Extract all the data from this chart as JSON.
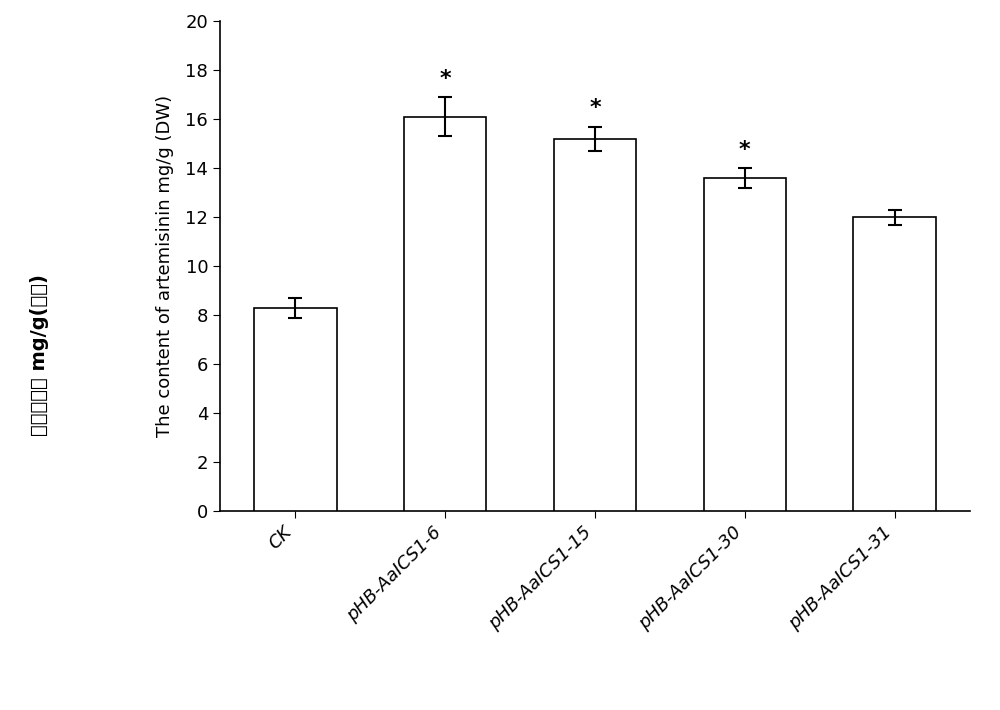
{
  "categories": [
    "CK",
    "pHB-AaICS1-6",
    "pHB-AaICS1-15",
    "pHB-AaICS1-30",
    "pHB-AaICS1-31"
  ],
  "values": [
    8.3,
    16.1,
    15.2,
    13.6,
    12.0
  ],
  "errors": [
    0.4,
    0.8,
    0.5,
    0.4,
    0.3
  ],
  "bar_color": "#FFFFFF",
  "bar_edgecolor": "#000000",
  "error_color": "#000000",
  "significance": [
    false,
    true,
    true,
    true,
    false
  ],
  "ylabel_english": "The content of artemisinin mg/g (DW)",
  "ylabel_chinese": "青蒿素含量 mg/g(干重)",
  "ylim": [
    0,
    20
  ],
  "yticks": [
    0,
    2,
    4,
    6,
    8,
    10,
    12,
    14,
    16,
    18,
    20
  ],
  "bar_width": 0.55,
  "figsize": [
    10.0,
    7.1
  ],
  "dpi": 100,
  "background_color": "#FFFFFF",
  "tick_fontsize": 13,
  "ylabel_fontsize": 13,
  "star_fontsize": 16,
  "xticklabel_rotation": 45,
  "xticklabel_ha": "right"
}
